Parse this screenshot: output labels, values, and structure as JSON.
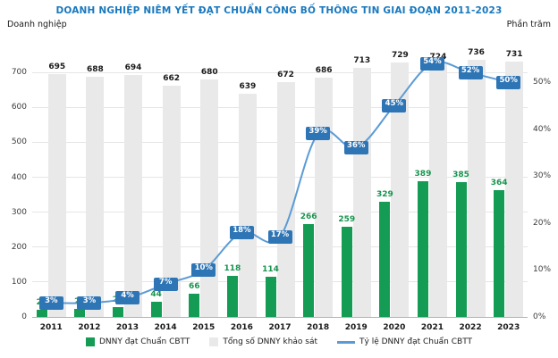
{
  "colors": {
    "title": "#1878be",
    "grid": "#e5e5e5",
    "axis_line": "#b3b3b3",
    "text": "#1a1a1a"
  },
  "chart_data": {
    "type": "bar+line",
    "title": "DOANH NGHIỆP NIÊM YẾT ĐẠT CHUẨN CÔNG BỐ THÔNG TIN GIAI ĐOẠN 2011-2023",
    "categories": [
      "2011",
      "2012",
      "2013",
      "2014",
      "2015",
      "2016",
      "2017",
      "2018",
      "2019",
      "2020",
      "2021",
      "2022",
      "2023"
    ],
    "series": [
      {
        "name": "DNNY đạt Chuẩn CBTT",
        "type": "bar",
        "color": "#149c55",
        "label_color": "#17944f",
        "values": [
          21,
          23,
          29,
          44,
          66,
          118,
          114,
          266,
          259,
          329,
          389,
          385,
          364
        ]
      },
      {
        "name": "Tổng số DNNY khảo sát",
        "type": "bar",
        "color": "#e9e9e9",
        "label_color": "#1a1a1a",
        "values": [
          695,
          688,
          694,
          662,
          680,
          639,
          672,
          686,
          713,
          729,
          724,
          736,
          731
        ]
      },
      {
        "name": "Tỷ lệ DNNY đạt Chuẩn CBTT",
        "type": "line",
        "color": "#5b9bd5",
        "label_bg": "#2e75b6",
        "label_color": "#ffffff",
        "values_pct": [
          3,
          3,
          4,
          7,
          10,
          18,
          17,
          39,
          36,
          45,
          54,
          52,
          50
        ]
      }
    ],
    "left_axis": {
      "label": "Doanh nghiệp",
      "ticks": [
        0,
        100,
        200,
        300,
        400,
        500,
        600,
        700
      ],
      "max": 780
    },
    "right_axis": {
      "label": "Phần trăm",
      "ticks": [
        0,
        10,
        20,
        30,
        40,
        50
      ],
      "suffix": "%",
      "max": 58
    },
    "legend_position": "bottom",
    "grid": true
  }
}
